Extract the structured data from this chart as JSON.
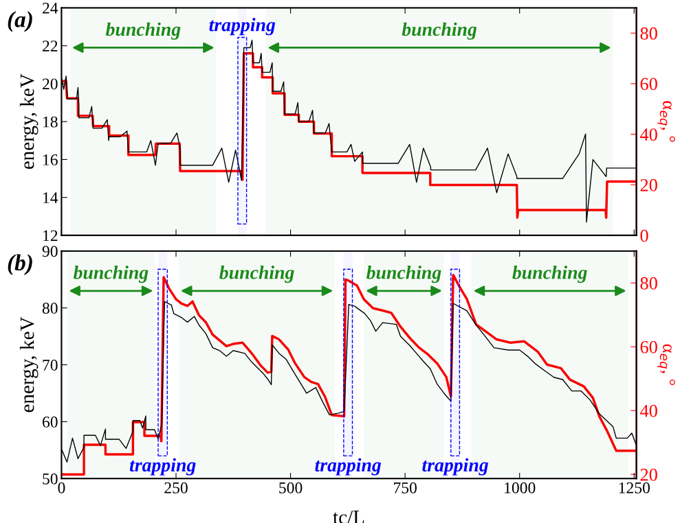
{
  "chart_data": [
    {
      "type": "line",
      "title": "(a)",
      "ylabel": "energy, keV",
      "y2label": "α$_{eq}$, °",
      "xlim": [
        0,
        1255
      ],
      "xticks": [
        0,
        250,
        500,
        750,
        1000,
        1250
      ],
      "ylim": [
        12,
        24
      ],
      "yticks": [
        12,
        14,
        16,
        18,
        20,
        22,
        24
      ],
      "y2lim": [
        0,
        90
      ],
      "y2ticks": [
        0,
        20,
        40,
        60,
        80
      ],
      "tick_labels": "y",
      "grid": false,
      "legend": false,
      "bands": [
        {
          "axis": "x",
          "from": 19,
          "to": 338,
          "label": "bunching",
          "color": "#1a8a1a"
        },
        {
          "axis": "x",
          "from": 385,
          "to": 404,
          "label": "trapping",
          "color": "#0000ff"
        },
        {
          "axis": "x",
          "from": 446,
          "to": 1204,
          "label": "bunching",
          "color": "#1a8a1a"
        }
      ],
      "series": [
        {
          "color": "#000000",
          "x": [
            0,
            5,
            10,
            13,
            33,
            36,
            38,
            38,
            60,
            66,
            69,
            88,
            100,
            103,
            104,
            128,
            143,
            146,
            186,
            195,
            205,
            211,
            238,
            252,
            259,
            259,
            330,
            350,
            365,
            380,
            393,
            397,
            398,
            412,
            416,
            418,
            432,
            436,
            438,
            455,
            460,
            461,
            479,
            485,
            487,
            510,
            516,
            518,
            540,
            548,
            551,
            576,
            584,
            590,
            623,
            632,
            640,
            657,
            657,
            735,
            760,
            775,
            790,
            806,
            806,
            904,
            930,
            950,
            975,
            994,
            994,
            1094,
            1130,
            1144,
            1146,
            1160,
            1189,
            1190,
            1255
          ],
          "values": [
            20.3,
            19.7,
            20.4,
            19.2,
            19.2,
            19.8,
            18.8,
            18.2,
            18.2,
            18.8,
            17.65,
            17.65,
            18.1,
            17.0,
            17.2,
            17.2,
            17.5,
            16.4,
            16.4,
            17.0,
            15.7,
            16.85,
            16.85,
            17.4,
            16.6,
            15.7,
            15.7,
            16.6,
            14.8,
            16.5,
            14.9,
            19.5,
            21.9,
            21.9,
            22.3,
            21.1,
            21.1,
            21.6,
            20.6,
            20.6,
            21.1,
            19.6,
            19.6,
            20.1,
            18.4,
            18.4,
            19.0,
            18.0,
            18.0,
            18.6,
            17.4,
            17.4,
            17.9,
            16.4,
            16.4,
            16.8,
            15.9,
            16.4,
            15.8,
            15.8,
            16.8,
            14.8,
            16.6,
            15.6,
            15.45,
            15.45,
            16.6,
            14.25,
            16.3,
            15.1,
            15.0,
            15.0,
            16.3,
            17.35,
            12.7,
            16.0,
            15.1,
            15.55,
            15.55
          ]
        },
        {
          "color": "#ff0000",
          "axis": "y2",
          "x": [
            0,
            10,
            12,
            36,
            36,
            68,
            69,
            104,
            104,
            146,
            146,
            205,
            206,
            258,
            259,
            393,
            395,
            398,
            418,
            418,
            438,
            438,
            461,
            461,
            487,
            487,
            518,
            518,
            551,
            551,
            590,
            590,
            657,
            657,
            805,
            805,
            994,
            995,
            997,
            1188,
            1189,
            1191,
            1255
          ],
          "values": [
            61,
            61,
            54.2,
            54.2,
            47.3,
            47.3,
            43.2,
            43.2,
            39.5,
            39.5,
            31.8,
            31.8,
            36.3,
            36.3,
            25.4,
            25.4,
            22,
            72,
            72,
            66.5,
            66.5,
            62.5,
            62.5,
            56.2,
            56.2,
            47.7,
            47.7,
            45,
            45,
            40.3,
            40.3,
            31.3,
            31.3,
            24.7,
            24.7,
            19.9,
            19.9,
            7,
            10,
            10,
            7,
            21.3,
            21.3
          ]
        }
      ]
    },
    {
      "type": "line",
      "title": "(b)",
      "xlabel": "tc/L",
      "ylabel": "energy, keV",
      "y2label": "α$_{eq}$, °",
      "xlim": [
        0,
        1255
      ],
      "xticks": [
        0,
        250,
        500,
        750,
        1000,
        1250
      ],
      "ylim": [
        50,
        90
      ],
      "yticks": [
        50,
        60,
        70,
        80,
        90
      ],
      "y2lim": [
        18.7,
        90
      ],
      "y2ticks": [
        20,
        40,
        60,
        80
      ],
      "grid": false,
      "legend": false,
      "bands": [
        {
          "axis": "x",
          "from": 12,
          "to": 204,
          "label": "bunching",
          "color": "#1a8a1a"
        },
        {
          "axis": "x",
          "from": 211,
          "to": 231,
          "label": "trapping",
          "color": "#0000ff"
        },
        {
          "axis": "x",
          "from": 256,
          "to": 597,
          "label": "bunching",
          "color": "#1a8a1a"
        },
        {
          "axis": "x",
          "from": 616,
          "to": 635,
          "label": "trapping",
          "color": "#0000ff"
        },
        {
          "axis": "x",
          "from": 660,
          "to": 835,
          "label": "bunching",
          "color": "#1a8a1a"
        },
        {
          "axis": "x",
          "from": 850,
          "to": 869,
          "label": "trapping",
          "color": "#0000ff"
        },
        {
          "axis": "x",
          "from": 895,
          "to": 1237,
          "label": "bunching",
          "color": "#1a8a1a"
        }
      ],
      "series": [
        {
          "color": "#000000",
          "x": [
            1,
            12,
            24,
            36,
            49,
            49,
            74,
            85,
            96,
            96,
            126,
            141,
            156,
            156,
            171,
            177,
            184,
            184,
            203,
            211,
            219,
            223,
            225,
            240,
            245,
            262,
            275,
            290,
            300,
            315,
            330,
            345,
            360,
            375,
            400,
            415,
            440,
            450,
            458,
            460,
            475,
            490,
            505,
            520,
            535,
            555,
            570,
            585,
            605,
            617,
            627,
            640,
            662,
            675,
            686,
            701,
            731,
            740,
            760,
            775,
            790,
            805,
            820,
            835,
            850,
            855,
            885,
            904,
            925,
            944,
            975,
            1000,
            1019,
            1034,
            1054,
            1075,
            1094,
            1114,
            1134,
            1154,
            1174,
            1204,
            1211,
            1235,
            1245,
            1255
          ],
          "values": [
            55,
            52.9,
            57.1,
            53.5,
            55.5,
            57.6,
            57.6,
            55.8,
            58.7,
            56.9,
            56.9,
            55.3,
            58.3,
            60.2,
            60.2,
            58.9,
            61,
            58.6,
            58.6,
            57,
            59.6,
            75,
            81.1,
            80.5,
            79,
            78.3,
            77.5,
            78.5,
            77,
            75.5,
            73,
            72.5,
            71.5,
            72.5,
            72,
            70.5,
            68.5,
            67.5,
            66.5,
            73.5,
            72,
            71,
            69,
            67,
            65,
            66,
            63.5,
            61.2,
            61.5,
            61.8,
            80.6,
            80.3,
            79.0,
            77.7,
            75.9,
            77.4,
            77.1,
            75.0,
            73.4,
            72.0,
            70.6,
            69.3,
            66.6,
            65.0,
            63.6,
            80.8,
            79.5,
            77.1,
            75.0,
            73.0,
            72.6,
            72.6,
            71.4,
            70.2,
            69.0,
            67.8,
            67.4,
            65.4,
            65.4,
            63.8,
            61.4,
            59.1,
            57.1,
            57.1,
            58,
            55.8
          ]
        },
        {
          "color": "#ff0000",
          "axis": "y2",
          "x": [
            0,
            49,
            49,
            96,
            96,
            156,
            156,
            181,
            181,
            216,
            218,
            223,
            235,
            250,
            262,
            275,
            286,
            300,
            315,
            330,
            345,
            360,
            375,
            395,
            415,
            435,
            450,
            458,
            460,
            475,
            495,
            510,
            530,
            545,
            560,
            575,
            590,
            617,
            620,
            627,
            645,
            660,
            680,
            700,
            720,
            740,
            760,
            780,
            800,
            820,
            840,
            850,
            855,
            870,
            885,
            905,
            925,
            950,
            980,
            1010,
            1040,
            1060,
            1090,
            1110,
            1140,
            1160,
            1174,
            1190,
            1211,
            1255
          ],
          "values": [
            20,
            20,
            29.3,
            29.3,
            26.3,
            26.3,
            36.4,
            36.4,
            32.1,
            32.1,
            30.4,
            81.8,
            78.2,
            74.9,
            73.5,
            72.8,
            74.2,
            69.9,
            67.7,
            63.8,
            62.0,
            60.2,
            60.9,
            61.3,
            58.0,
            54.1,
            51.9,
            52.2,
            63.4,
            62.3,
            59.1,
            54.8,
            50.5,
            49.0,
            48.3,
            44.4,
            38.6,
            38.2,
            81.1,
            80.7,
            79.2,
            74.9,
            72.1,
            71.4,
            70.6,
            66.3,
            62.8,
            59.8,
            57.6,
            54.8,
            50.5,
            44.4,
            82.5,
            78.5,
            74.9,
            67.0,
            64.9,
            62.3,
            61.3,
            61.7,
            58.4,
            54.4,
            53.3,
            49.7,
            47.6,
            44.0,
            38.2,
            33.9,
            27.4,
            27.4
          ]
        }
      ]
    }
  ]
}
